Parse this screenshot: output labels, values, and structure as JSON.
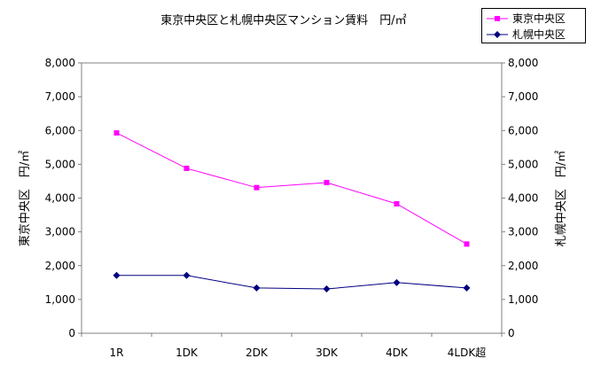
{
  "chart_data": {
    "type": "line",
    "title": "東京中央区と札幌中央区マンション賃料　円/㎡",
    "categories": [
      "1R",
      "1DK",
      "2DK",
      "3DK",
      "4DK",
      "4LDK超"
    ],
    "series": [
      {
        "name": "東京中央区",
        "axis": "left",
        "color": "#ff00ff",
        "marker": "square",
        "values": [
          5930,
          4880,
          4310,
          4460,
          3830,
          2640
        ]
      },
      {
        "name": "札幌中央区",
        "axis": "right",
        "color": "#000080",
        "marker": "diamond",
        "values": [
          1710,
          1710,
          1340,
          1310,
          1500,
          1340
        ]
      }
    ],
    "ylabel_left": "東京中央区　円/㎡",
    "ylabel_right": "札幌中央区　円/㎡",
    "ylim": [
      0,
      8000
    ],
    "y_ticks": [
      "0",
      "1,000",
      "2,000",
      "3,000",
      "4,000",
      "5,000",
      "6,000",
      "7,000",
      "8,000"
    ],
    "legend_position": "top-right",
    "grid": false
  }
}
